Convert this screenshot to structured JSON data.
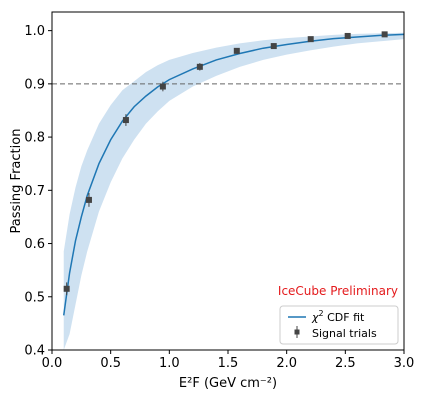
{
  "chart_data": {
    "type": "scatter",
    "xlabel": "E²F (GeV cm⁻²)",
    "ylabel": "Passing Fraction",
    "xlim": [
      0.0,
      3.0
    ],
    "ylim": [
      0.4,
      1.035
    ],
    "x_ticks": [
      "0.0",
      "0.5",
      "1.0",
      "1.5",
      "2.0",
      "2.5",
      "3.0"
    ],
    "y_ticks": [
      "0.4",
      "0.5",
      "0.6",
      "0.7",
      "0.8",
      "0.9",
      "1.0"
    ],
    "reference_line": {
      "y": 0.9,
      "style": "dashed",
      "color": "#666666"
    },
    "annotation": {
      "text": "IceCube Preliminary",
      "color": "#e41a1c"
    },
    "series": [
      {
        "name": "Signal trials",
        "kind": "points-with-errorbars",
        "color": "#444444",
        "x": [
          0.125,
          0.315,
          0.63,
          0.945,
          1.26,
          1.575,
          1.89,
          2.205,
          2.52,
          2.835
        ],
        "y": [
          0.515,
          0.682,
          0.832,
          0.895,
          0.932,
          0.962,
          0.971,
          0.984,
          0.99,
          0.993
        ],
        "yerr": [
          0.012,
          0.013,
          0.011,
          0.009,
          0.007,
          0.005,
          0.005,
          0.004,
          0.003,
          0.003
        ]
      },
      {
        "name": "χ² CDF fit",
        "kind": "line",
        "color": "#1f77b4",
        "band_color": "#a6c8e6",
        "x": [
          0.1,
          0.15,
          0.2,
          0.25,
          0.3,
          0.4,
          0.5,
          0.6,
          0.7,
          0.8,
          0.9,
          1.0,
          1.2,
          1.4,
          1.6,
          1.8,
          2.0,
          2.2,
          2.4,
          2.6,
          2.8,
          3.0
        ],
        "y": [
          0.465,
          0.545,
          0.605,
          0.65,
          0.69,
          0.75,
          0.795,
          0.83,
          0.857,
          0.877,
          0.894,
          0.908,
          0.928,
          0.945,
          0.957,
          0.967,
          0.974,
          0.98,
          0.985,
          0.988,
          0.991,
          0.993
        ],
        "band_upper": [
          0.585,
          0.655,
          0.705,
          0.745,
          0.775,
          0.825,
          0.86,
          0.888,
          0.905,
          0.922,
          0.935,
          0.945,
          0.958,
          0.968,
          0.976,
          0.982,
          0.986,
          0.989,
          0.992,
          0.994,
          0.995,
          0.996
        ],
        "band_lower": [
          0.4,
          0.43,
          0.485,
          0.54,
          0.585,
          0.66,
          0.715,
          0.76,
          0.795,
          0.825,
          0.848,
          0.868,
          0.895,
          0.915,
          0.932,
          0.945,
          0.955,
          0.963,
          0.97,
          0.976,
          0.98,
          0.984
        ]
      }
    ],
    "legend": {
      "placement": "lower-right",
      "entries": [
        {
          "label_prefix": "χ",
          "label_sup": "2",
          "label_suffix": " CDF fit",
          "series": "χ² CDF fit"
        },
        {
          "label": "Signal trials",
          "series": "Signal trials"
        }
      ]
    }
  }
}
